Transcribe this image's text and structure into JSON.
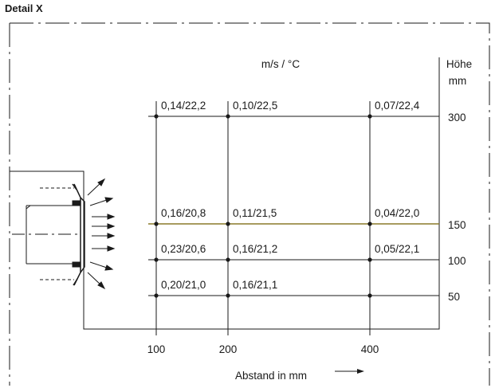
{
  "title": "Detail X",
  "unit_label": "m/s / °C",
  "height_label": "Höhe",
  "height_unit": "mm",
  "x_axis_label": "Abstand in mm",
  "x_ticks": [
    "100",
    "200",
    "400"
  ],
  "height_ticks": [
    "300",
    "150",
    "100",
    "50"
  ],
  "highlight_color": "#8a7a2a",
  "chart_data": {
    "type": "table",
    "x": [
      100,
      200,
      400
    ],
    "heights": [
      300,
      150,
      100,
      50
    ],
    "rows": [
      {
        "height": 300,
        "values": [
          "0,14/22,2",
          "0,10/22,5",
          "0,07/22,4"
        ]
      },
      {
        "height": 150,
        "values": [
          "0,16/20,8",
          "0,11/21,5",
          "0,04/22,0"
        ]
      },
      {
        "height": 100,
        "values": [
          "0,23/20,6",
          "0,16/21,2",
          "0,05/22,1"
        ]
      },
      {
        "height": 50,
        "values": [
          "0,20/21,0",
          "0,16/21,1",
          ""
        ]
      }
    ]
  }
}
